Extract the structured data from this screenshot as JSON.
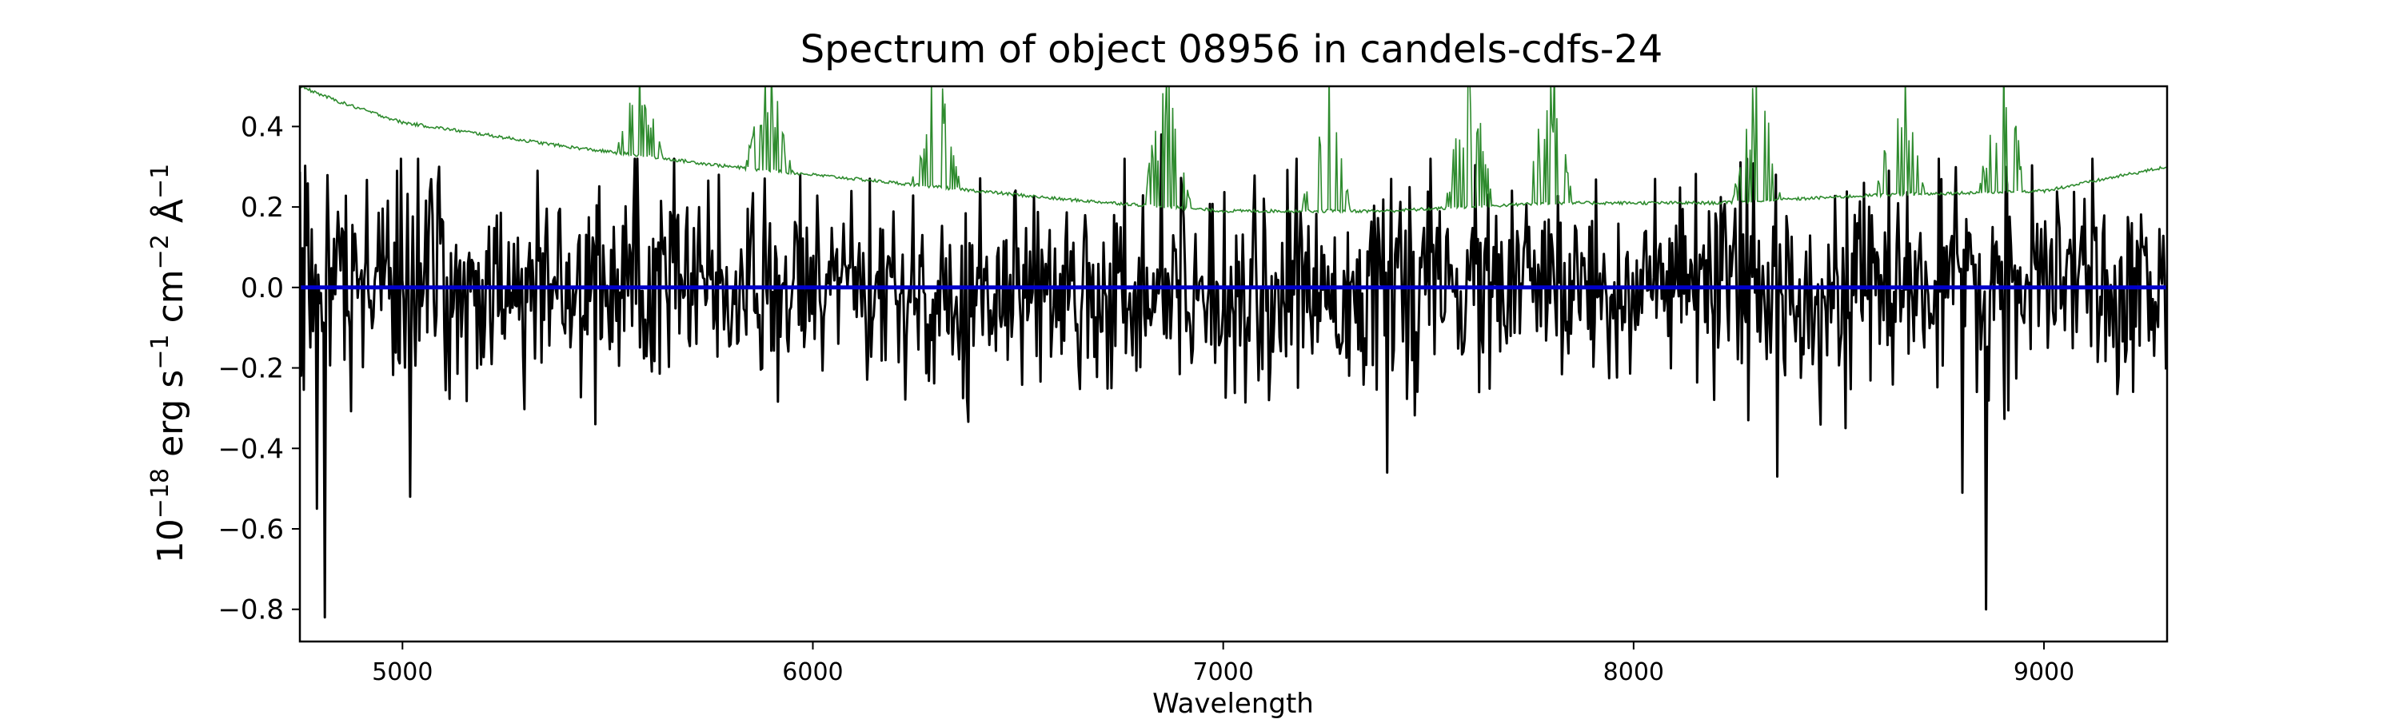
{
  "chart_data": {
    "type": "line",
    "title": "Spectrum of object 08956 in candels-cdfs-24",
    "xlabel": "Wavelength",
    "ylabel_parts": {
      "base": "10",
      "exp": "−18",
      "erg": " erg s",
      "s_exp": "−1",
      "cm": " cm",
      "cm_exp": "−2",
      "ang": " Å",
      "ang_exp": "−1"
    },
    "xlim": [
      4750,
      9300
    ],
    "ylim": [
      -0.88,
      0.5
    ],
    "xticks": [
      5000,
      6000,
      7000,
      8000,
      9000
    ],
    "xtick_labels": [
      "5000",
      "6000",
      "7000",
      "8000",
      "9000"
    ],
    "yticks": [
      -0.8,
      -0.6,
      -0.4,
      -0.2,
      0.0,
      0.2,
      0.4
    ],
    "ytick_labels": [
      "−0.8",
      "−0.6",
      "−0.4",
      "−0.2",
      "0.0",
      "0.2",
      "0.4"
    ],
    "grid": false,
    "legend": "none",
    "series": [
      {
        "role": "flux",
        "color": "#000000",
        "wavelength_range": [
          4750,
          9300
        ],
        "noise_sigma": 0.12,
        "notable_points": [
          {
            "x": 4810,
            "y": -0.82
          },
          {
            "x": 4790,
            "y": -0.55
          },
          {
            "x": 5020,
            "y": -0.52
          },
          {
            "x": 5090,
            "y": 0.3
          },
          {
            "x": 5330,
            "y": 0.29
          },
          {
            "x": 5470,
            "y": -0.34
          },
          {
            "x": 5770,
            "y": 0.28
          },
          {
            "x": 6140,
            "y": 0.27
          },
          {
            "x": 6850,
            "y": 0.38
          },
          {
            "x": 7110,
            "y": -0.28
          },
          {
            "x": 7400,
            "y": -0.46
          },
          {
            "x": 8280,
            "y": -0.33
          },
          {
            "x": 8350,
            "y": -0.47
          },
          {
            "x": 8800,
            "y": -0.51
          },
          {
            "x": 8860,
            "y": -0.8
          },
          {
            "x": 9100,
            "y": 0.22
          }
        ]
      },
      {
        "role": "error",
        "color": "#2e8b2e",
        "continuum": [
          {
            "x": 4750,
            "y": 0.5
          },
          {
            "x": 4850,
            "y": 0.46
          },
          {
            "x": 5000,
            "y": 0.41
          },
          {
            "x": 5400,
            "y": 0.35
          },
          {
            "x": 5800,
            "y": 0.3
          },
          {
            "x": 6200,
            "y": 0.26
          },
          {
            "x": 6600,
            "y": 0.22
          },
          {
            "x": 7000,
            "y": 0.19
          },
          {
            "x": 7400,
            "y": 0.19
          },
          {
            "x": 7800,
            "y": 0.21
          },
          {
            "x": 8200,
            "y": 0.21
          },
          {
            "x": 8600,
            "y": 0.23
          },
          {
            "x": 9000,
            "y": 0.24
          },
          {
            "x": 9300,
            "y": 0.3
          }
        ],
        "sky_line_bands": [
          {
            "x": 5577,
            "y": 0.5
          },
          {
            "x": 5892,
            "y": 0.5
          },
          {
            "x": 6300,
            "y": 0.5
          },
          {
            "x": 6864,
            "y": 0.5
          },
          {
            "x": 7250,
            "y": 0.5
          },
          {
            "x": 7600,
            "y": 0.5
          },
          {
            "x": 7800,
            "y": 0.5
          },
          {
            "x": 8300,
            "y": 0.5
          },
          {
            "x": 8650,
            "y": 0.5
          },
          {
            "x": 8900,
            "y": 0.5
          }
        ]
      },
      {
        "role": "model",
        "color": "#0000cc",
        "x": [
          4750,
          9300
        ],
        "y": [
          0.0,
          0.0
        ]
      }
    ]
  }
}
